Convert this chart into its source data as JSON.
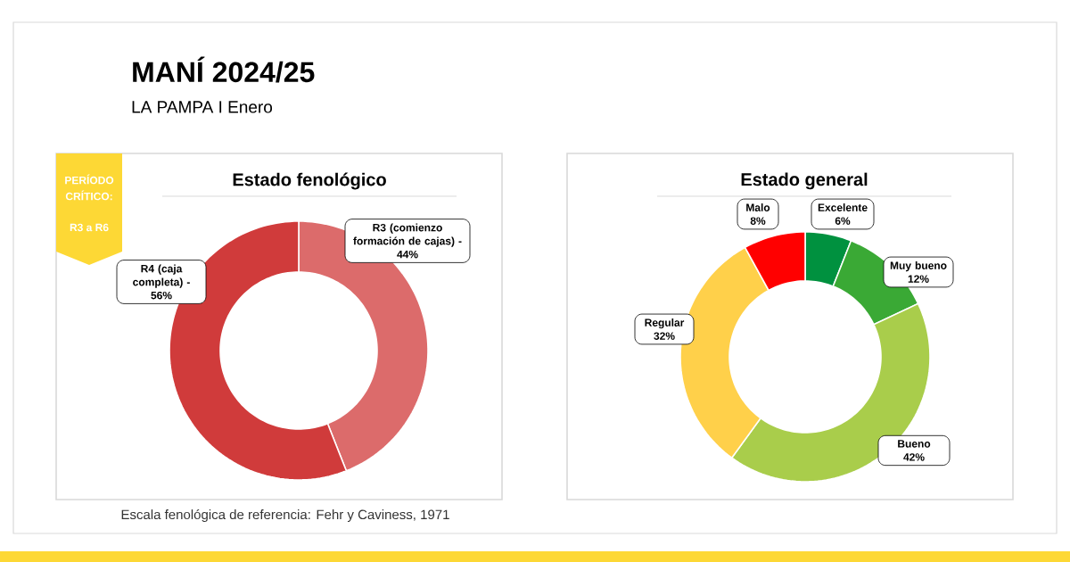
{
  "chart_data": [
    {
      "type": "donut",
      "title": "Estado fenológico",
      "categories": [
        "R3 (comienzo formación de cajas) -",
        "R4 (caja completa) -"
      ],
      "values": [
        44,
        56
      ],
      "value_labels": [
        "44%",
        "56%"
      ],
      "colors": [
        "#dc6b6b",
        "#d03b3b"
      ],
      "annotations": [
        "MANÍ 2024/25",
        "LA PAMPA I Enero",
        "PERÍODO CRÍTICO:",
        "R3 a R6",
        "Escala fenológica de referencia: Fehr y Caviness, 1971"
      ]
    },
    {
      "type": "donut",
      "title": "Estado general",
      "categories": [
        "Excelente",
        "Muy bueno",
        "Bueno",
        "Regular",
        "Malo"
      ],
      "values": [
        6,
        12,
        42,
        32,
        8
      ],
      "value_labels": [
        "6%",
        "12%",
        "42%",
        "32%",
        "8%"
      ],
      "colors": [
        "#00913f",
        "#3aa935",
        "#a9cd4b",
        "#ffd04a",
        "#ff0000"
      ]
    }
  ]
}
